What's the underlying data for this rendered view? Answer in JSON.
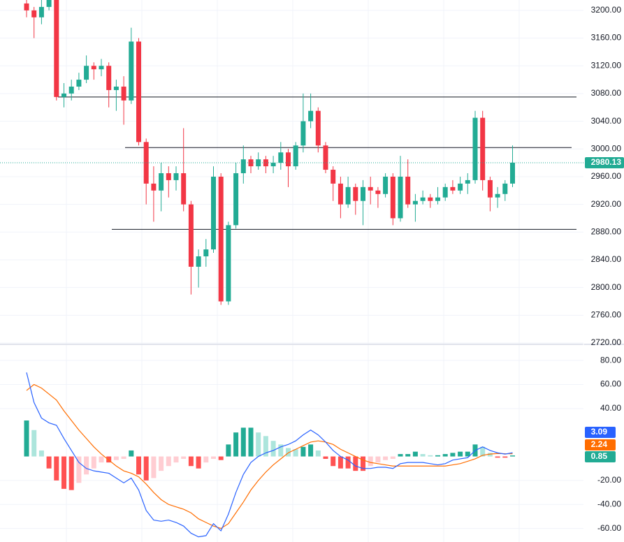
{
  "chart_data": [
    {
      "type": "candlestick",
      "up_color": "#22ab94",
      "down_color": "#f23645",
      "open": [
        3210,
        3200,
        3190,
        3205,
        3215,
        3075,
        3080,
        3090,
        3100,
        3120,
        3115,
        3120,
        3085,
        3090,
        3070,
        3155,
        3010,
        2950,
        2940,
        2965,
        2955,
        2965,
        2920,
        2830,
        2845,
        2855,
        2960,
        2780,
        2890,
        2965,
        2985,
        2975,
        2985,
        2975,
        2980,
        2995,
        2975,
        3005,
        3040,
        3055,
        3005,
        2970,
        2950,
        2920,
        2945,
        2925,
        2945,
        2940,
        2935,
        2960,
        2900,
        2960,
        2920,
        2925,
        2930,
        2925,
        2930,
        2945,
        2940,
        2950,
        2955,
        3045,
        2955,
        2930,
        2935,
        2950
      ],
      "high": [
        3215,
        3205,
        3215,
        3220,
        3215,
        3095,
        3100,
        3110,
        3135,
        3125,
        3130,
        3125,
        3100,
        3105,
        3175,
        3160,
        3015,
        2975,
        2980,
        2975,
        2975,
        3030,
        2925,
        2855,
        2870,
        2975,
        2965,
        2895,
        2980,
        3005,
        2990,
        2995,
        2990,
        2990,
        3010,
        3000,
        3010,
        3080,
        3080,
        3060,
        3010,
        2975,
        2960,
        2960,
        2950,
        2955,
        2960,
        2945,
        2965,
        2965,
        2990,
        2985,
        2935,
        2940,
        2935,
        2945,
        2950,
        2955,
        2960,
        2965,
        3055,
        3055,
        2960,
        2945,
        2955,
        3005
      ],
      "low": [
        3190,
        3160,
        3180,
        3200,
        3070,
        3060,
        3070,
        3085,
        3095,
        3100,
        3105,
        3060,
        3055,
        3035,
        3065,
        3005,
        2920,
        2895,
        2910,
        2930,
        2940,
        2910,
        2790,
        2800,
        2830,
        2850,
        2775,
        2775,
        2885,
        2950,
        2965,
        2970,
        2965,
        2965,
        2970,
        2945,
        2970,
        2995,
        3030,
        2995,
        2965,
        2925,
        2900,
        2915,
        2905,
        2890,
        2920,
        2915,
        2930,
        2890,
        2895,
        2915,
        2895,
        2920,
        2915,
        2920,
        2925,
        2935,
        2935,
        2935,
        2950,
        2940,
        2910,
        2915,
        2925,
        2945
      ],
      "close": [
        3200,
        3190,
        3205,
        3215,
        3075,
        3080,
        3090,
        3100,
        3120,
        3115,
        3120,
        3085,
        3090,
        3070,
        3155,
        3010,
        2950,
        2940,
        2965,
        2955,
        2965,
        2920,
        2830,
        2845,
        2855,
        2960,
        2780,
        2890,
        2965,
        2985,
        2975,
        2985,
        2975,
        2980,
        2995,
        2975,
        3005,
        3040,
        3055,
        3005,
        2970,
        2950,
        2920,
        2945,
        2925,
        2945,
        2940,
        2935,
        2960,
        2900,
        2960,
        2920,
        2925,
        2930,
        2925,
        2930,
        2945,
        2940,
        2950,
        2955,
        3045,
        2955,
        2930,
        2935,
        2950,
        2980.13
      ],
      "hlines": [
        3075,
        3002,
        2884
      ],
      "ylim": [
        2719,
        3215
      ],
      "yticks": [
        {
          "value": 2720,
          "label": "2720.00"
        },
        {
          "value": 2760,
          "label": "2760.00"
        },
        {
          "value": 2800,
          "label": "2800.00"
        },
        {
          "value": 2840,
          "label": "2840.00"
        },
        {
          "value": 2880,
          "label": "2880.00"
        },
        {
          "value": 2920,
          "label": "2920.00"
        },
        {
          "value": 2960,
          "label": "2960.00"
        },
        {
          "value": 3000,
          "label": "3000.00"
        },
        {
          "value": 3040,
          "label": "3040.00"
        },
        {
          "value": 3080,
          "label": "3080.00"
        },
        {
          "value": 3120,
          "label": "3120.00"
        },
        {
          "value": 3160,
          "label": "3160.00"
        },
        {
          "value": 3200,
          "label": "3200.00"
        }
      ]
    },
    {
      "type": "macd",
      "histogram": {
        "up_color": "#22ab94",
        "up_light": "#ace5dc",
        "down_color": "#ff5252",
        "down_light": "#ffcdd2",
        "values": [
          30,
          22,
          5,
          -10,
          -20,
          -27,
          -28,
          -22,
          -15,
          -10,
          -5,
          -5,
          -3,
          -2,
          5,
          -15,
          -20,
          -18,
          -12,
          -8,
          -5,
          -2,
          -8,
          -10,
          -5,
          -2,
          -3,
          10,
          20,
          24,
          24,
          20,
          17,
          13,
          10,
          7,
          6,
          8,
          10,
          5,
          -2,
          -8,
          -10,
          -10,
          -12,
          -12,
          -8,
          -5,
          -3,
          -2,
          2,
          2,
          4,
          2,
          1,
          1,
          2,
          3,
          4,
          4,
          10,
          8,
          3,
          -1,
          -1,
          0.85
        ]
      },
      "macd": {
        "color": "#2962ff",
        "values": [
          70,
          45,
          32,
          28,
          26,
          15,
          5,
          -5,
          -10,
          -12,
          -13,
          -14,
          -18,
          -22,
          -18,
          -28,
          -45,
          -53,
          -54,
          -53,
          -55,
          -58,
          -64,
          -67,
          -66,
          -56,
          -62,
          -48,
          -30,
          -15,
          -5,
          0,
          3,
          5,
          8,
          10,
          13,
          18,
          22,
          18,
          12,
          5,
          0,
          -3,
          -8,
          -10,
          -10,
          -9,
          -9,
          -10,
          -6,
          -5,
          -5,
          -5,
          -6,
          -7,
          -6,
          -3,
          -2,
          -1,
          5,
          8,
          5,
          3,
          2,
          3.09
        ]
      },
      "signal": {
        "color": "#ff6d00",
        "values": [
          55,
          60,
          57,
          52,
          47,
          38,
          30,
          22,
          15,
          8,
          2,
          -3,
          -8,
          -12,
          -14,
          -17,
          -23,
          -30,
          -36,
          -40,
          -42,
          -44,
          -47,
          -52,
          -55,
          -58,
          -60,
          -56,
          -47,
          -38,
          -28,
          -20,
          -13,
          -7,
          -2,
          3,
          6,
          9,
          12,
          13,
          12,
          10,
          6,
          3,
          0,
          -3,
          -5,
          -6,
          -7,
          -8,
          -8,
          -8,
          -8,
          -8,
          -8,
          -8,
          -8,
          -7,
          -6,
          -4,
          -2,
          1,
          2,
          2.5,
          2.3,
          2.24
        ]
      },
      "ylim": [
        -71.3,
        92.3
      ],
      "yticks": [
        {
          "value": 80,
          "label": "80.00"
        },
        {
          "value": 60,
          "label": "60.00"
        },
        {
          "value": 40,
          "label": "40.00"
        },
        {
          "value": -20,
          "label": "-20.00"
        },
        {
          "value": -40,
          "label": "-40.00"
        },
        {
          "value": -60,
          "label": "-60.00"
        }
      ]
    }
  ]
}
